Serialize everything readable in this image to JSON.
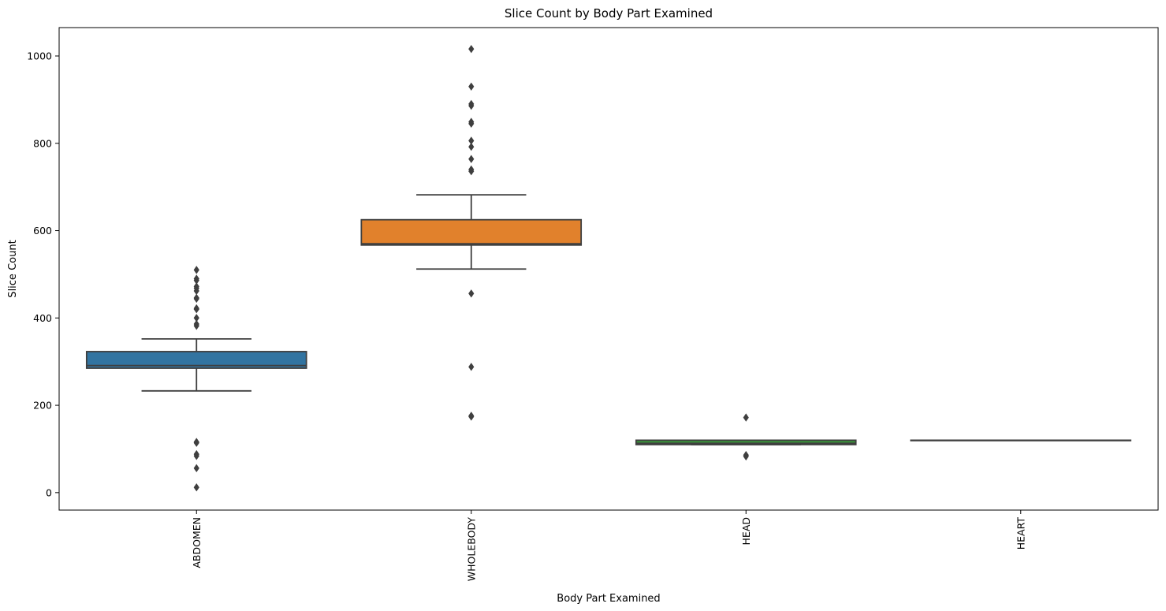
{
  "chart_data": {
    "type": "box",
    "title": "Slice Count by Body Part Examined",
    "xlabel": "Body Part Examined",
    "ylabel": "Slice Count",
    "ylim": [
      -40,
      1065
    ],
    "yticks": [
      0,
      200,
      400,
      600,
      800,
      1000
    ],
    "grid": false,
    "legend": "none",
    "x_tick_rotation": 90,
    "line_color": "#3f3f3f",
    "categories": [
      "ABDOMEN",
      "WHOLEBODY",
      "HEAD",
      "HEART"
    ],
    "boxes": [
      {
        "category": "ABDOMEN",
        "color": "#3274a1",
        "whisker_low": 233,
        "q1": 285,
        "median": 291,
        "q3": 323,
        "whisker_high": 352,
        "outliers": [
          510,
          490,
          486,
          472,
          468,
          462,
          446,
          444,
          422,
          420,
          400,
          386,
          382,
          116,
          114,
          88,
          84,
          56,
          12
        ]
      },
      {
        "category": "WHOLEBODY",
        "color": "#e1812c",
        "whisker_low": 512,
        "q1": 567,
        "median": 570,
        "q3": 625,
        "whisker_high": 682,
        "outliers": [
          1016,
          930,
          890,
          886,
          849,
          845,
          806,
          792,
          764,
          740,
          736,
          456,
          288,
          176,
          174
        ]
      },
      {
        "category": "HEAD",
        "color": "#3a923a",
        "whisker_low": 110,
        "q1": 110,
        "median": 113,
        "q3": 120,
        "whisker_high": 120,
        "outliers": [
          172,
          86,
          83
        ]
      },
      {
        "category": "HEART",
        "color": "#c03d3e",
        "whisker_low": 120,
        "q1": 120,
        "median": 120,
        "q3": 120,
        "whisker_high": 120,
        "outliers": []
      }
    ]
  }
}
